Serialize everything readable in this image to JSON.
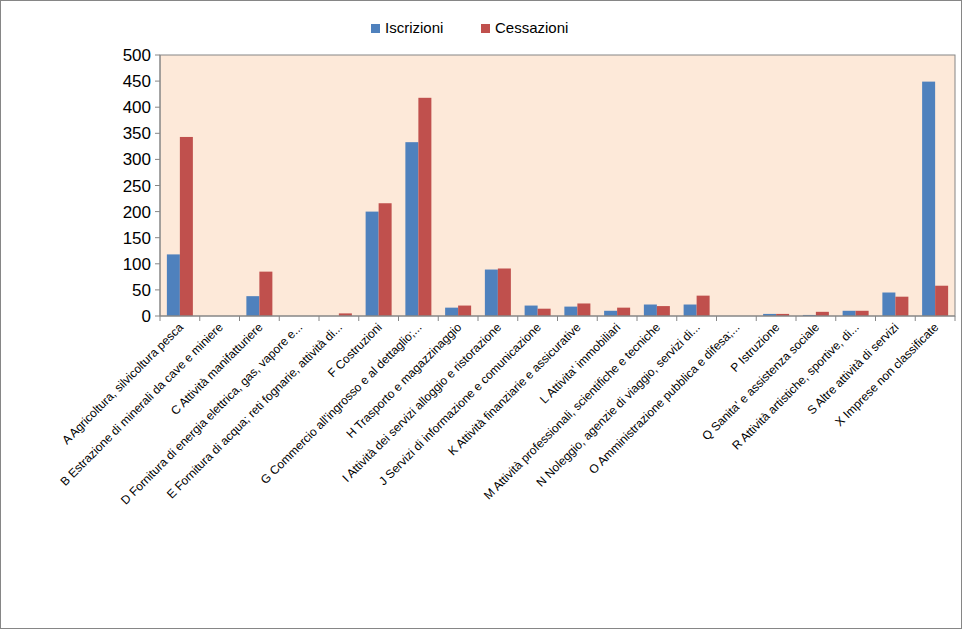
{
  "chart_data": {
    "type": "bar",
    "categories": [
      "A Agricoltura, silvicoltura pesca",
      "B Estrazione di minerali da cave e miniere",
      "C Attività manifatturiere",
      "D Fornitura di energia elettrica, gas, vapore e...",
      "E Fornitura di acqua; reti fognarie, attività di...",
      "F Costruzioni",
      "G Commercio all'ingrosso e al dettaglio;...",
      "H Trasporto e magazzinaggio",
      "I Attività dei servizi alloggio e ristorazione",
      "J Servizi di informazione e comunicazione",
      "K Attività finanziarie e assicurative",
      "L Attivita' immobiliari",
      "M Attività professionali, scientifiche e tecniche",
      "N Noleggio, agenzie di viaggio, servizi di...",
      "O Amministrazione pubblica e difesa;...",
      "P Istruzione",
      "Q Sanita' e assistenza sociale",
      "R Attività artistiche, sportive, di...",
      "S Altre attività di servizi",
      "X Imprese non classificate"
    ],
    "series": [
      {
        "name": "Iscrizioni",
        "color": "#4f81bd",
        "values": [
          118,
          0,
          38,
          0,
          0,
          200,
          333,
          16,
          89,
          20,
          18,
          10,
          22,
          22,
          0,
          4,
          2,
          10,
          45,
          449
        ]
      },
      {
        "name": "Cessazioni",
        "color": "#c0504d",
        "values": [
          343,
          0,
          85,
          0,
          5,
          216,
          418,
          20,
          91,
          14,
          24,
          16,
          19,
          39,
          0,
          4,
          8,
          10,
          37,
          58
        ]
      }
    ],
    "ylim": [
      0,
      500
    ],
    "yticks": [
      0,
      50,
      100,
      150,
      200,
      250,
      300,
      350,
      400,
      450,
      500
    ],
    "grid": false,
    "legend": "top"
  }
}
